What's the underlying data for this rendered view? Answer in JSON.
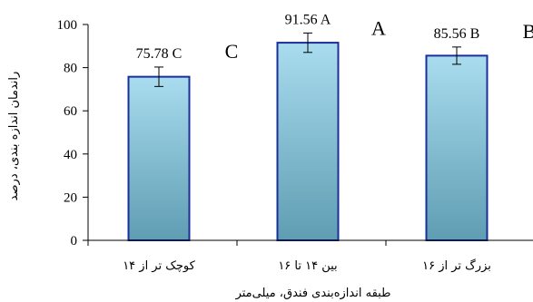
{
  "chart_data": {
    "type": "bar",
    "categories": [
      "کوچک تر از ۱۴",
      "بین ۱۴ تا ۱۶",
      "بزرگ تر از ۱۶"
    ],
    "values": [
      75.78,
      91.56,
      85.56
    ],
    "errors": [
      4.5,
      4.5,
      4.0
    ],
    "bar_labels": [
      "75.78  C",
      "91.56  A",
      "85.56  B"
    ],
    "group_letters": [
      "C",
      "A",
      "B"
    ],
    "xlabel": "طبقه اندازه‌بندی فندق، میلی‌متر",
    "ylabel": "راندمان اندازه بندی، درصد",
    "ylim": [
      0,
      100
    ],
    "yticks": [
      0,
      20,
      40,
      60,
      80,
      100
    ],
    "grid": false,
    "colors": {
      "bar_top": "#a9dcee",
      "bar_bottom": "#5f9db3",
      "bar_stroke": "#1a2f99"
    }
  }
}
